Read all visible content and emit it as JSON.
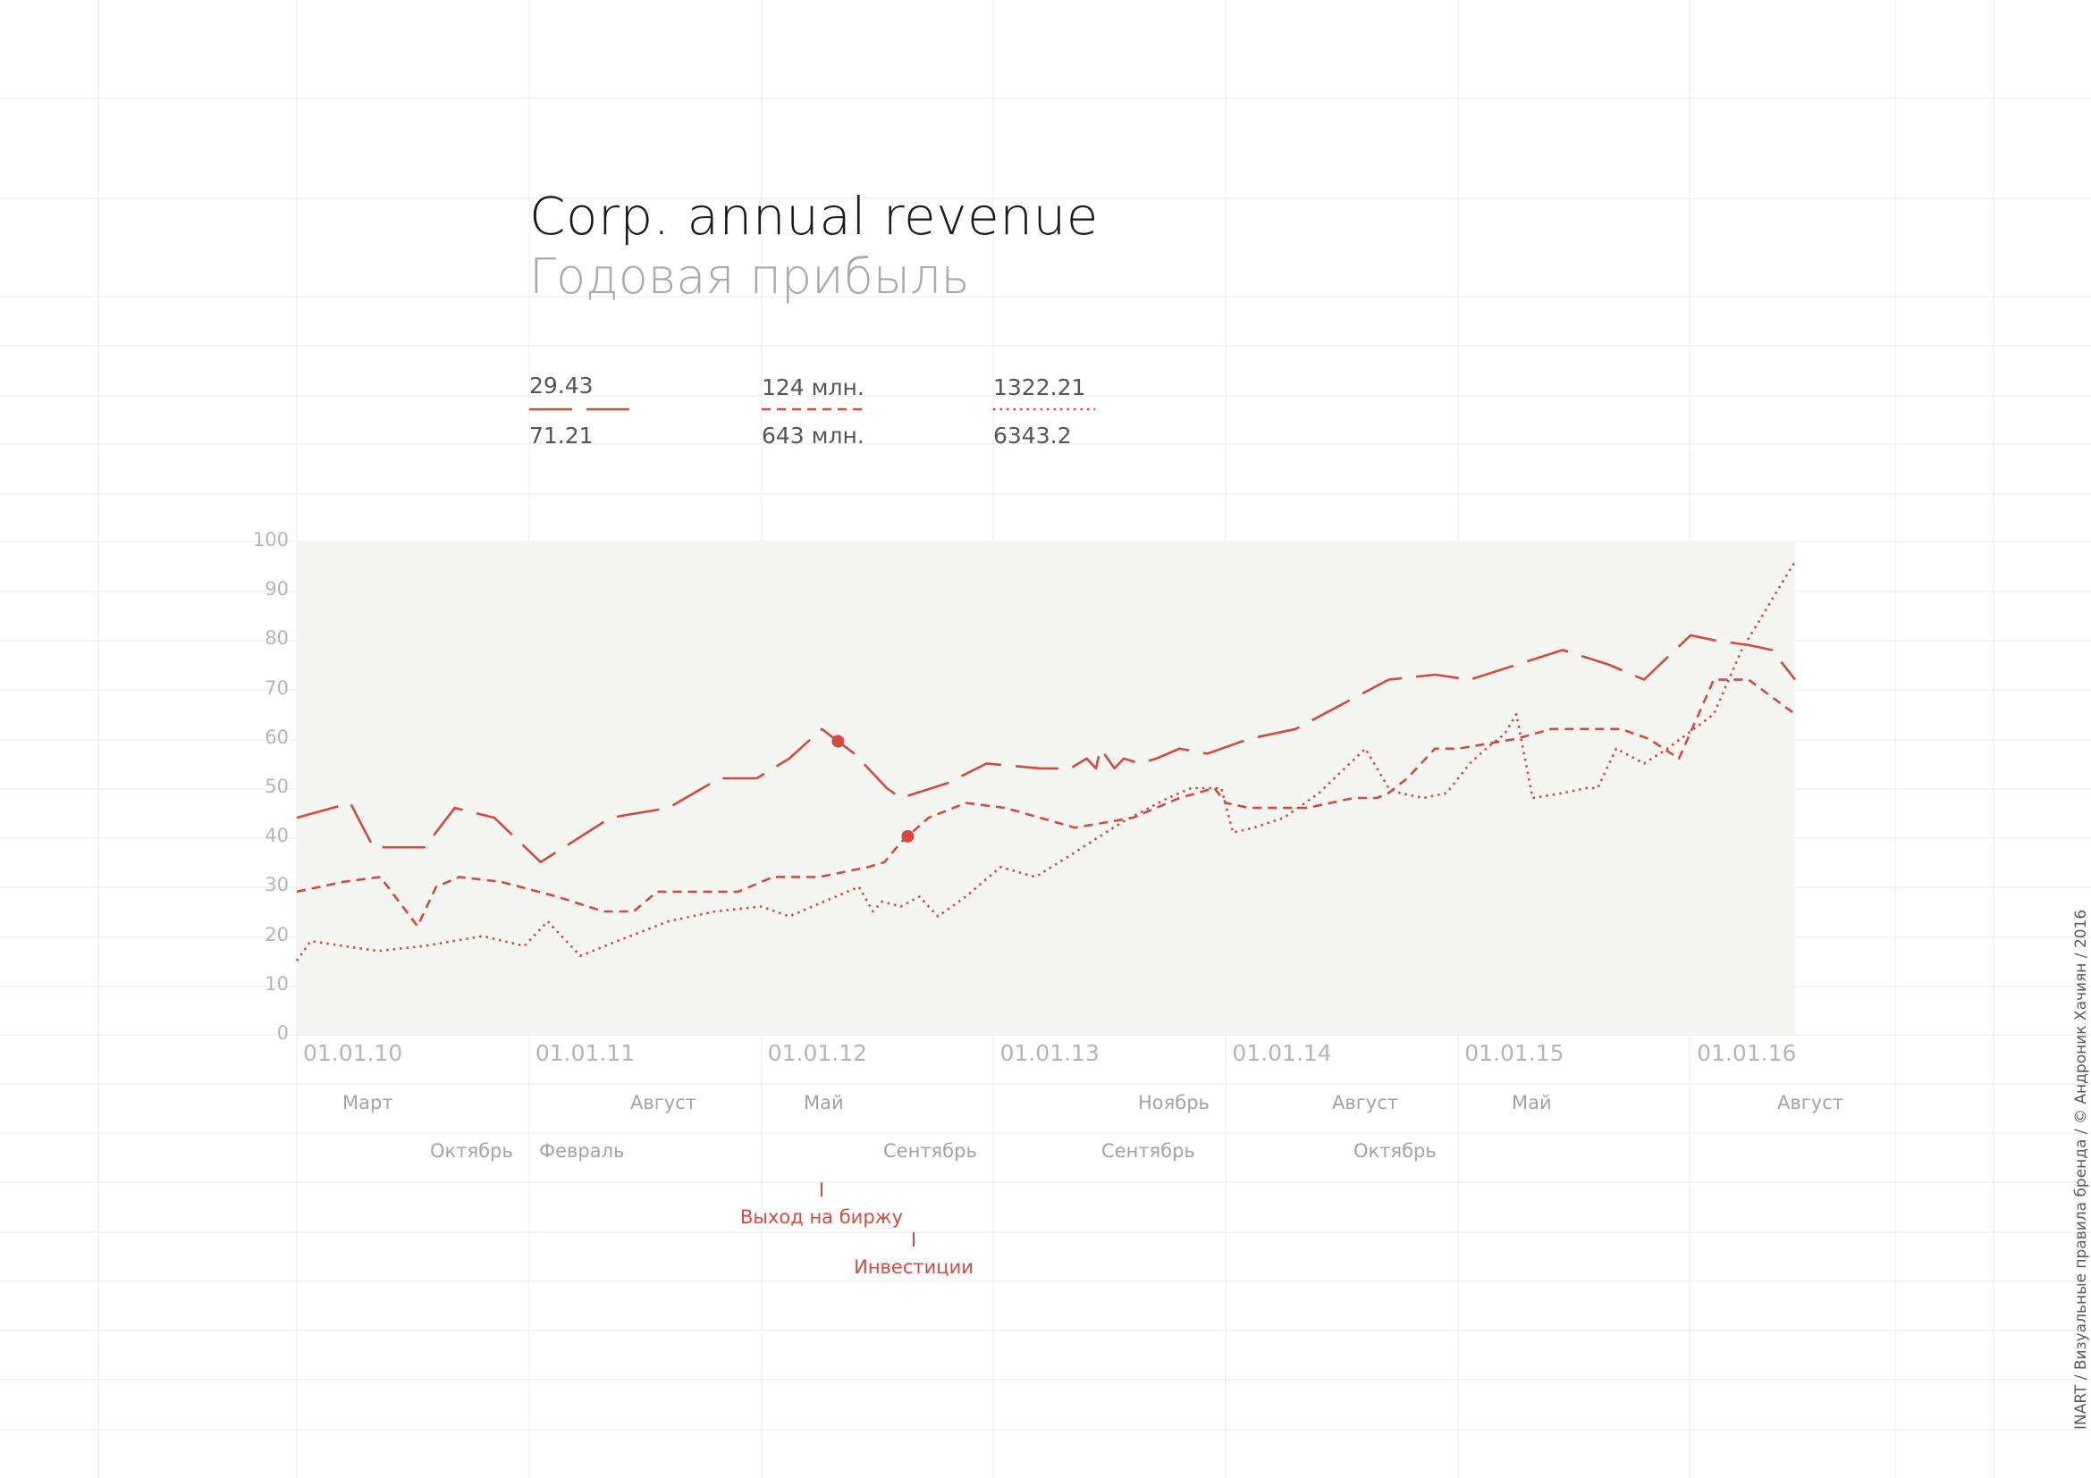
{
  "page": {
    "title": "Corp. annual revenue",
    "subtitle": "Годовая прибыль",
    "credit": "INART / Визуальные правила бренда  / © Андроник Хачиян / 2016"
  },
  "legend": [
    {
      "top": "29.43",
      "bottom": "71.21",
      "style": "longdash"
    },
    {
      "top": "124 млн.",
      "bottom": "643 млн.",
      "style": "dash"
    },
    {
      "top": "1322.21",
      "bottom": "6343.2",
      "style": "dot"
    }
  ],
  "months": {
    "row1": [
      "Март",
      "Август",
      "Май",
      "Ноябрь",
      "Август",
      "Май",
      "Август"
    ],
    "row2": [
      "Октябрь",
      "Февраль",
      "Сентябрь",
      "Сентябрь",
      "Октябрь"
    ]
  },
  "annotations": [
    {
      "label": "Выход на биржу",
      "x": 2012.33
    },
    {
      "label": "Инвестиции",
      "x": 2012.63
    }
  ],
  "colors": {
    "accent": "#d24a40",
    "plot_bg": "#f5f5f1",
    "grid": "#e9e9e9"
  },
  "chart_data": {
    "type": "line",
    "xlabel": "",
    "ylabel": "",
    "ylim": [
      0,
      100
    ],
    "xlim": [
      2010.0,
      2016.45
    ],
    "yticks": [
      0,
      10,
      20,
      30,
      40,
      50,
      60,
      70,
      80,
      90,
      100
    ],
    "xticks": [
      {
        "x": 2010.0,
        "label": "01.01.10"
      },
      {
        "x": 2011.0,
        "label": "01.01.11"
      },
      {
        "x": 2012.0,
        "label": "01.01.12"
      },
      {
        "x": 2013.0,
        "label": "01.01.13"
      },
      {
        "x": 2014.0,
        "label": "01.01.14"
      },
      {
        "x": 2015.0,
        "label": "01.01.15"
      },
      {
        "x": 2016.0,
        "label": "01.01.16"
      }
    ],
    "series": [
      {
        "style": "longdash",
        "x": [
          2010.0,
          2010.23,
          2010.33,
          2010.55,
          2010.68,
          2010.85,
          2011.05,
          2011.35,
          2011.6,
          2011.82,
          2011.98,
          2012.12,
          2012.26,
          2012.4,
          2012.54,
          2012.6,
          2012.8,
          2012.97,
          2013.2,
          2013.33,
          2013.4,
          2013.44,
          2013.46,
          2013.52,
          2013.56,
          2013.63,
          2013.7,
          2013.8,
          2013.92,
          2014.1,
          2014.3,
          2014.5,
          2014.7,
          2014.9,
          2015.05,
          2015.25,
          2015.45,
          2015.65,
          2015.8,
          2016.0,
          2016.1,
          2016.25,
          2016.35,
          2016.45
        ],
        "y": [
          44,
          47,
          38,
          38,
          46,
          44,
          35,
          44,
          46,
          52,
          52,
          56,
          62,
          57,
          50,
          48,
          51,
          55,
          54,
          54,
          56,
          54,
          58,
          54,
          56,
          55,
          56,
          58,
          57,
          60,
          62,
          67,
          72,
          73,
          72,
          75,
          78,
          75,
          72,
          81,
          80,
          79,
          78,
          72
        ]
      },
      {
        "style": "dash",
        "x": [
          2010.0,
          2010.2,
          2010.36,
          2010.52,
          2010.6,
          2010.7,
          2010.88,
          2011.12,
          2011.32,
          2011.45,
          2011.55,
          2011.75,
          2011.9,
          2012.05,
          2012.25,
          2012.46,
          2012.53,
          2012.6,
          2012.72,
          2012.88,
          2013.05,
          2013.35,
          2013.6,
          2013.8,
          2013.95,
          2014.0,
          2014.1,
          2014.35,
          2014.55,
          2014.65,
          2014.7,
          2014.78,
          2014.9,
          2015.0,
          2015.25,
          2015.4,
          2015.55,
          2015.7,
          2015.82,
          2015.95,
          2016.1,
          2016.25,
          2016.45
        ],
        "y": [
          29,
          31,
          32,
          22,
          30,
          32,
          31,
          28,
          25,
          25,
          29,
          29,
          29,
          32,
          32,
          34,
          35,
          39,
          44,
          47,
          46,
          42,
          44,
          48,
          50,
          47,
          46,
          46,
          48,
          48,
          49,
          52,
          58,
          58,
          60,
          62,
          62,
          62,
          60,
          56,
          72,
          72,
          65
        ]
      },
      {
        "style": "dot",
        "x": [
          2010.0,
          2010.06,
          2010.2,
          2010.35,
          2010.55,
          2010.8,
          2010.98,
          2011.08,
          2011.22,
          2011.38,
          2011.6,
          2011.8,
          2012.0,
          2012.12,
          2012.32,
          2012.42,
          2012.48,
          2012.52,
          2012.6,
          2012.68,
          2012.72,
          2012.76,
          2012.88,
          2013.03,
          2013.18,
          2013.35,
          2013.55,
          2013.75,
          2013.85,
          2013.98,
          2014.03,
          2014.12,
          2014.25,
          2014.4,
          2014.6,
          2014.7,
          2014.75,
          2014.85,
          2014.95,
          2015.05,
          2015.12,
          2015.2,
          2015.25,
          2015.32,
          2015.45,
          2015.55,
          2015.6,
          2015.68,
          2015.8,
          2015.9,
          2016.1,
          2016.22,
          2016.45
        ],
        "y": [
          15,
          19,
          18,
          17,
          18,
          20,
          18,
          23,
          16,
          19,
          23,
          25,
          26,
          24,
          28,
          30,
          25,
          27,
          26,
          28,
          26,
          24,
          28,
          34,
          32,
          37,
          43,
          48,
          50,
          50,
          41,
          42,
          44,
          49,
          58,
          50,
          49,
          48,
          49,
          55,
          58,
          61,
          65,
          48,
          49,
          50,
          50,
          58,
          55,
          58,
          65,
          78,
          96
        ]
      }
    ]
  }
}
